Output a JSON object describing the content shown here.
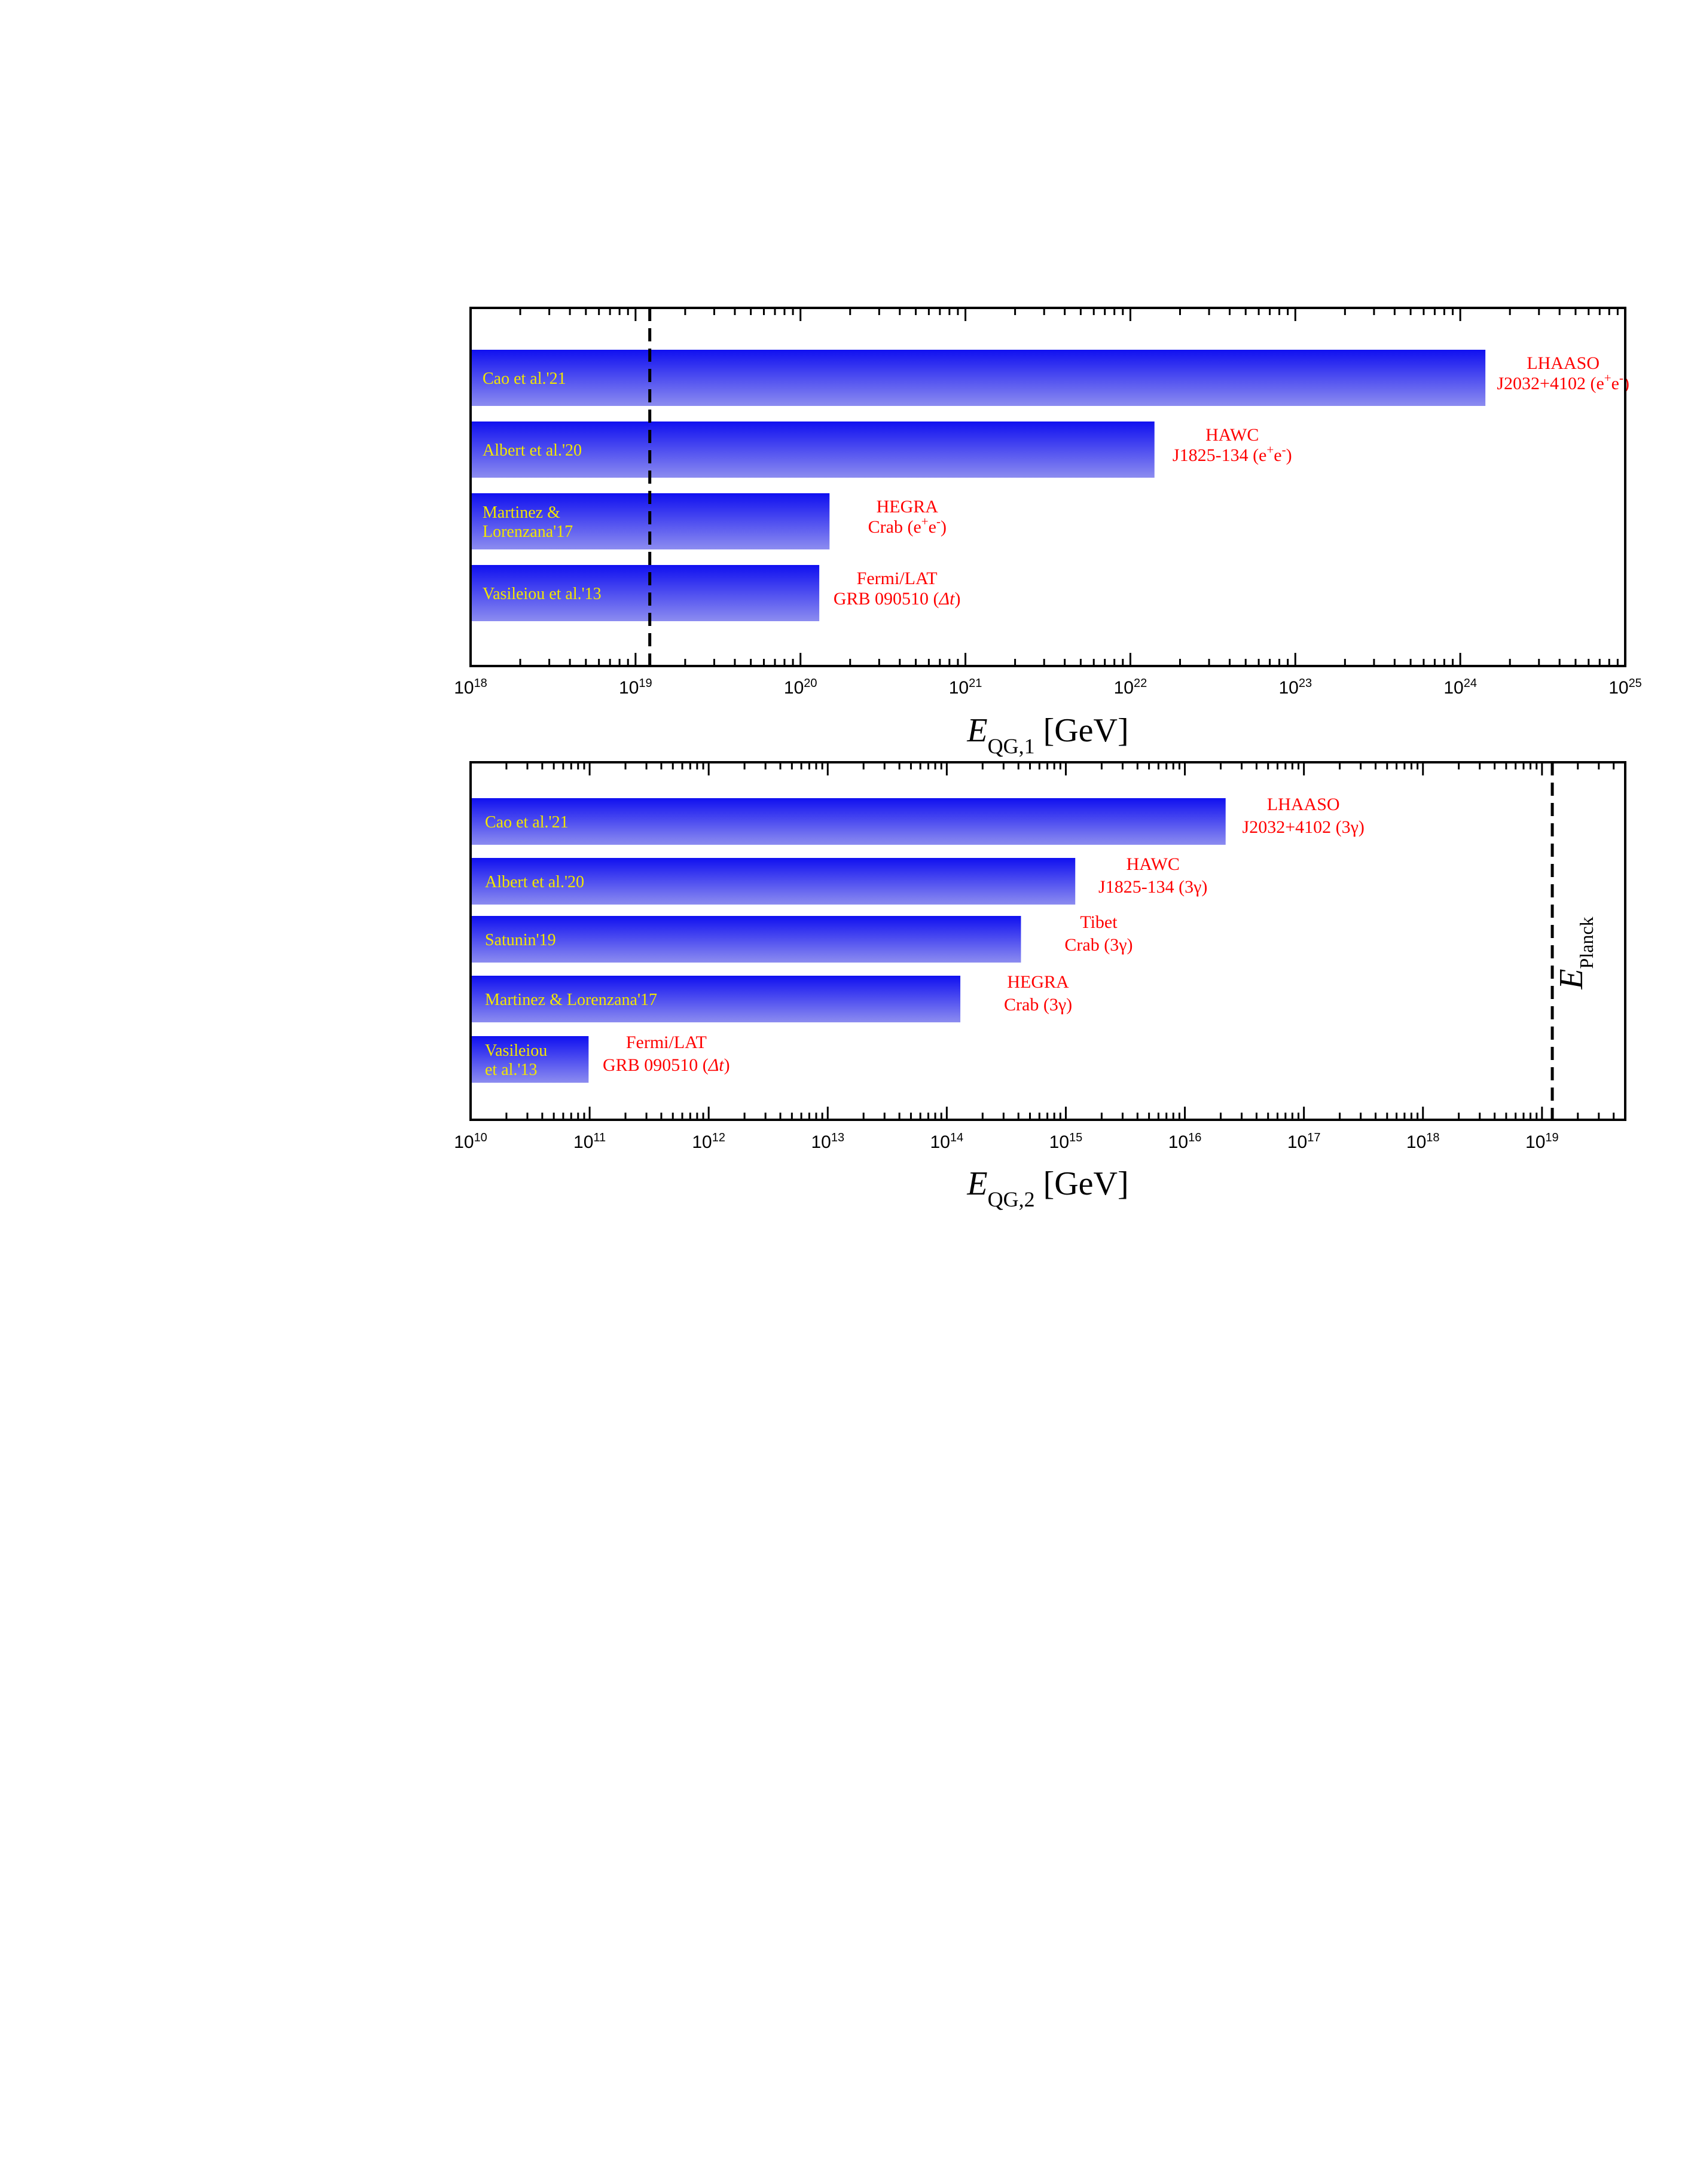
{
  "chart_data": [
    {
      "type": "bar",
      "orientation": "horizontal",
      "x_scale": "log",
      "xlim": [
        1e+18,
        1e+25
      ],
      "xlabel": {
        "main": "E",
        "sub": "QG,1",
        "unit": "[GeV]"
      },
      "x_ticks": [
        {
          "base": "10",
          "exp": "18"
        },
        {
          "base": "10",
          "exp": "19"
        },
        {
          "base": "10",
          "exp": "20"
        },
        {
          "base": "10",
          "exp": "21"
        },
        {
          "base": "10",
          "exp": "22"
        },
        {
          "base": "10",
          "exp": "23"
        },
        {
          "base": "10",
          "exp": "24"
        },
        {
          "base": "10",
          "exp": "25"
        }
      ],
      "reference_line": {
        "value": 1.22e+19,
        "style": "dashed",
        "label": ""
      },
      "bars": [
        {
          "label_lines": [
            "Cao et al.'21"
          ],
          "value": 1.42e+24,
          "experiment_lines": [
            {
              "parts": [
                {
                  "t": "LHAASO"
                }
              ]
            },
            {
              "parts": [
                {
                  "t": "J2032+4102 (e"
                },
                {
                  "t": "+",
                  "sup": true
                },
                {
                  "t": "e"
                },
                {
                  "t": "-",
                  "sup": true
                },
                {
                  "t": ")"
                }
              ]
            }
          ]
        },
        {
          "label_lines": [
            "Albert et al.'20"
          ],
          "value": 1.4e+22,
          "experiment_lines": [
            {
              "parts": [
                {
                  "t": "HAWC"
                }
              ]
            },
            {
              "parts": [
                {
                  "t": "J1825-134 (e"
                },
                {
                  "t": "+",
                  "sup": true
                },
                {
                  "t": "e"
                },
                {
                  "t": "-",
                  "sup": true
                },
                {
                  "t": ")"
                }
              ]
            }
          ]
        },
        {
          "label_lines": [
            "Martinez &",
            "Lorenzana'17"
          ],
          "value": 1.5e+20,
          "experiment_lines": [
            {
              "parts": [
                {
                  "t": "HEGRA"
                }
              ]
            },
            {
              "parts": [
                {
                  "t": "Crab (e"
                },
                {
                  "t": "+",
                  "sup": true
                },
                {
                  "t": "e"
                },
                {
                  "t": "-",
                  "sup": true
                },
                {
                  "t": ")"
                }
              ]
            }
          ]
        },
        {
          "label_lines": [
            "Vasileiou et al.'13"
          ],
          "value": 1.3e+20,
          "experiment_lines": [
            {
              "parts": [
                {
                  "t": "Fermi/LAT"
                }
              ]
            },
            {
              "parts": [
                {
                  "t": "GRB 090510 ("
                },
                {
                  "t": "Δt",
                  "italic": true
                },
                {
                  "t": ")"
                }
              ]
            }
          ]
        }
      ]
    },
    {
      "type": "bar",
      "orientation": "horizontal",
      "x_scale": "log",
      "xlim": [
        10000000000.0,
        5e+19
      ],
      "xlabel": {
        "main": "E",
        "sub": "QG,2",
        "unit": "[GeV]"
      },
      "x_ticks": [
        {
          "base": "10",
          "exp": "10"
        },
        {
          "base": "10",
          "exp": "11"
        },
        {
          "base": "10",
          "exp": "12"
        },
        {
          "base": "10",
          "exp": "13"
        },
        {
          "base": "10",
          "exp": "14"
        },
        {
          "base": "10",
          "exp": "15"
        },
        {
          "base": "10",
          "exp": "16"
        },
        {
          "base": "10",
          "exp": "17"
        },
        {
          "base": "10",
          "exp": "18"
        },
        {
          "base": "10",
          "exp": "19"
        }
      ],
      "reference_line": {
        "value": 1.22e+19,
        "style": "dashed",
        "label_main": "E",
        "label_sub": "Planck"
      },
      "bars": [
        {
          "label_lines": [
            "Cao et al.'21"
          ],
          "value": 2.2e+16,
          "experiment_lines": [
            {
              "parts": [
                {
                  "t": "LHAASO"
                }
              ]
            },
            {
              "parts": [
                {
                  "t": "J2032+4102 (3γ)"
                }
              ]
            }
          ]
        },
        {
          "label_lines": [
            "Albert et al.'20"
          ],
          "value": 1200000000000000.0,
          "experiment_lines": [
            {
              "parts": [
                {
                  "t": "HAWC"
                }
              ]
            },
            {
              "parts": [
                {
                  "t": "J1825-134 (3γ)"
                }
              ]
            }
          ]
        },
        {
          "label_lines": [
            "Satunin'19"
          ],
          "value": 420000000000000.0,
          "experiment_lines": [
            {
              "parts": [
                {
                  "t": "Tibet"
                }
              ]
            },
            {
              "parts": [
                {
                  "t": "Crab (3γ)"
                }
              ]
            }
          ]
        },
        {
          "label_lines": [
            "Martinez & Lorenzana'17"
          ],
          "value": 130000000000000.0,
          "experiment_lines": [
            {
              "parts": [
                {
                  "t": "HEGRA"
                }
              ]
            },
            {
              "parts": [
                {
                  "t": "Crab (3γ)"
                }
              ]
            }
          ]
        },
        {
          "label_lines": [
            "Vasileiou",
            "et al.'13"
          ],
          "value": 98000000000.0,
          "experiment_lines": [
            {
              "parts": [
                {
                  "t": "Fermi/LAT"
                }
              ]
            },
            {
              "parts": [
                {
                  "t": "GRB 090510 ("
                },
                {
                  "t": "Δt",
                  "italic": true
                },
                {
                  "t": ")"
                }
              ]
            }
          ]
        }
      ]
    }
  ],
  "colors": {
    "bar_top": "#1010f0",
    "bar_bottom": "#8c8cf0",
    "bar_label": "#f2e600",
    "experiment_label": "#ff0000",
    "axis": "#000000"
  }
}
